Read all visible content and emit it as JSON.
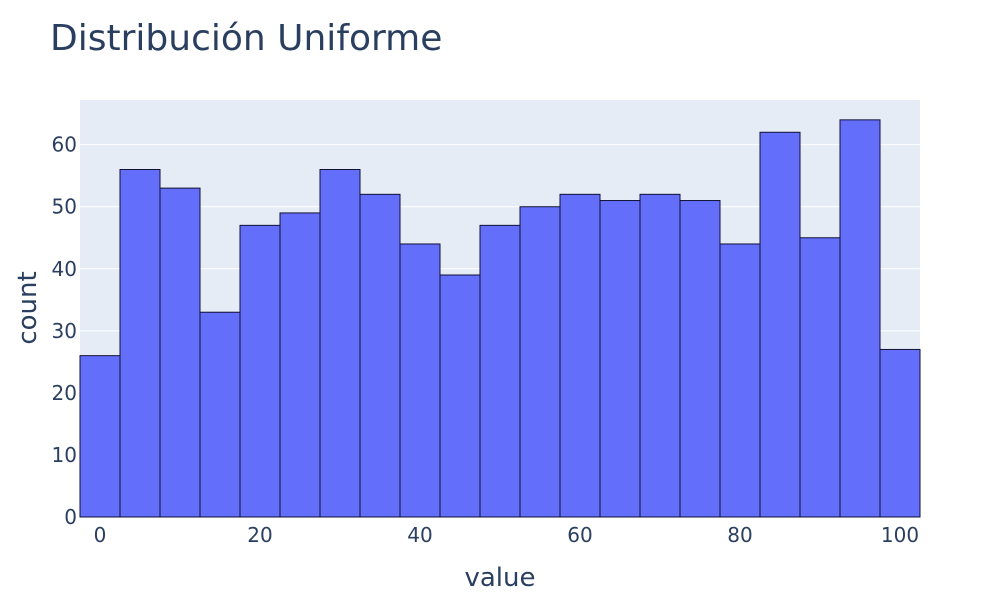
{
  "chart_data": {
    "type": "bar",
    "title": "Distribución Uniforme",
    "xlabel": "value",
    "ylabel": "count",
    "bin_edges": [
      -2.5,
      2.5,
      7.5,
      12.5,
      17.5,
      22.5,
      27.5,
      32.5,
      37.5,
      42.5,
      47.5,
      52.5,
      57.5,
      62.5,
      67.5,
      72.5,
      77.5,
      82.5,
      87.5,
      92.5,
      97.5,
      102.5
    ],
    "values": [
      26,
      56,
      53,
      33,
      47,
      49,
      56,
      52,
      44,
      39,
      47,
      50,
      52,
      51,
      52,
      51,
      44,
      62,
      45,
      64,
      27
    ],
    "xlim": [
      -2.5,
      102.5
    ],
    "ylim": [
      0,
      67.2
    ],
    "x_ticks": [
      0,
      20,
      40,
      60,
      80,
      100
    ],
    "x_tick_labels": [
      "0",
      "20",
      "40",
      "60",
      "80",
      "100"
    ],
    "y_ticks": [
      0,
      10,
      20,
      30,
      40,
      50,
      60
    ],
    "y_tick_labels": [
      "0",
      "10",
      "20",
      "30",
      "40",
      "50",
      "60"
    ],
    "grid": true,
    "colors": {
      "bar_fill": "#636efa",
      "bar_stroke": "#111133",
      "plot_bg": "#e5ecf6",
      "grid": "#ffffff",
      "text": "#2a3f5f",
      "page_bg": "#ffffff"
    }
  }
}
